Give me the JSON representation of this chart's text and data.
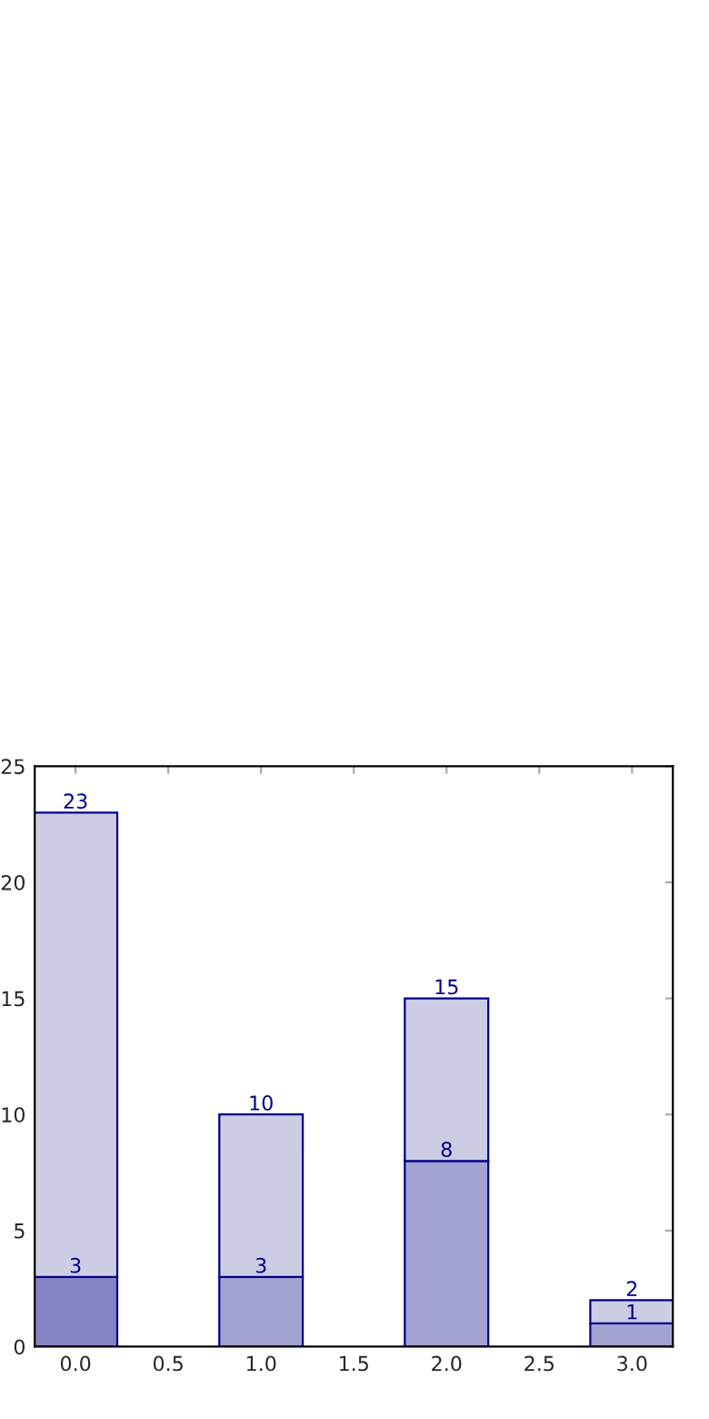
{
  "chart_data": {
    "type": "bar",
    "x": [
      0,
      1,
      2,
      3
    ],
    "stacked": true,
    "series": [
      {
        "colors": [
          "#8484c2",
          "#a3a3d1",
          "#a3a3d1",
          "#a3a3d1"
        ],
        "values": [
          3,
          3,
          8,
          1
        ],
        "value_labels": [
          "3",
          "3",
          "8",
          "1"
        ]
      },
      {
        "color": "#ccccE5",
        "values": [
          20,
          7,
          7,
          1
        ]
      }
    ],
    "totals": [
      "23",
      "10",
      "15",
      "2"
    ],
    "xlim": [
      -0.22,
      3.22
    ],
    "xticks": [
      {
        "value": 0,
        "label": "0.0"
      },
      0.5,
      {
        "value": 1,
        "label": "1.0"
      },
      1.5,
      {
        "value": 2,
        "label": "2.0"
      },
      2.5,
      {
        "value": 3,
        "label": "3.0"
      }
    ],
    "ylim": [
      0,
      25
    ],
    "yticks": [
      0,
      5,
      10,
      15,
      20,
      25
    ],
    "grid": false
  }
}
